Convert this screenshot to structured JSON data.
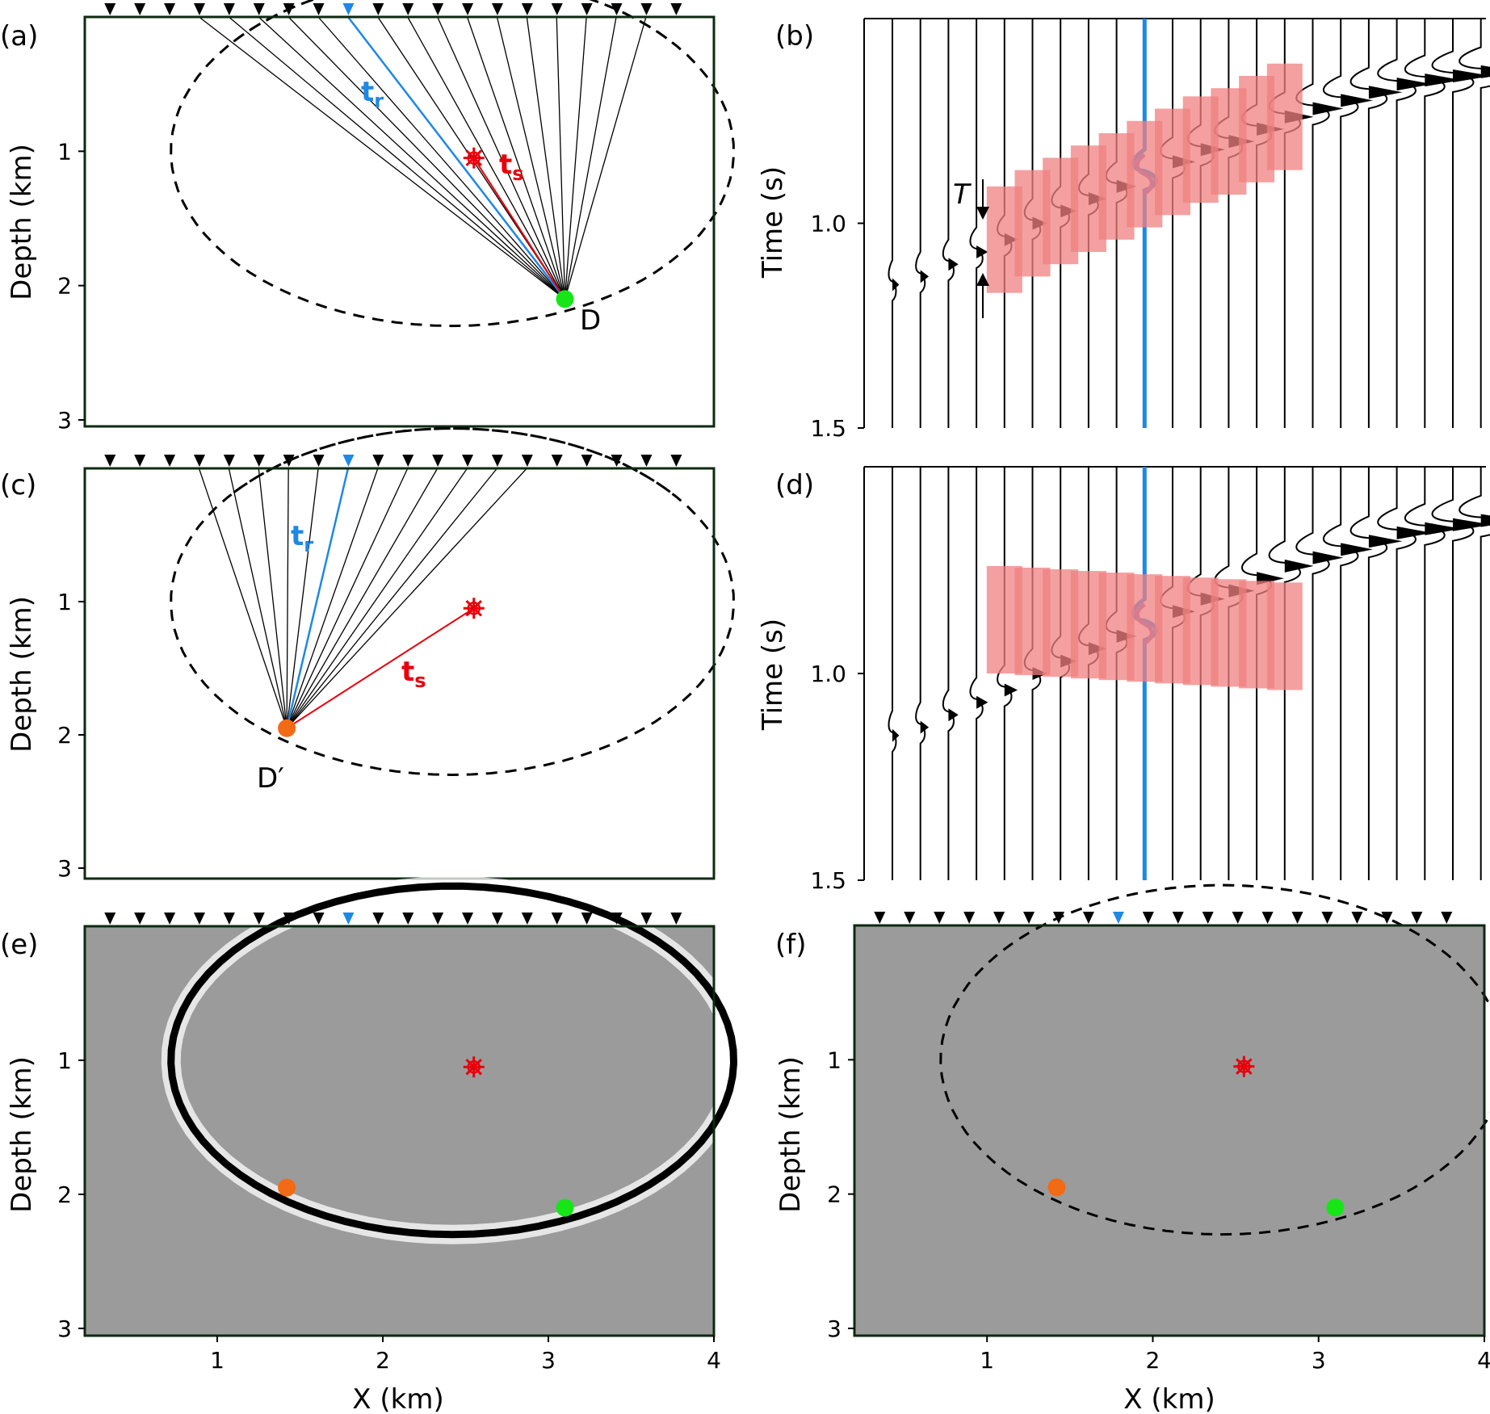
{
  "figure": {
    "panels": [
      {
        "id": "a",
        "label": "(a)",
        "ylabel": "Depth (km)",
        "ray_labels": {
          "receiver": "t",
          "receiver_sub": "r",
          "source": "t",
          "source_sub": "s"
        },
        "point_label": "D"
      },
      {
        "id": "b",
        "label": "(b)",
        "ylabel": "Time (s)",
        "window_label": "T"
      },
      {
        "id": "c",
        "label": "(c)",
        "ylabel": "Depth (km)",
        "ray_labels": {
          "receiver": "t",
          "receiver_sub": "r",
          "source": "t",
          "source_sub": "s"
        },
        "point_label": "D′"
      },
      {
        "id": "d",
        "label": "(d)",
        "ylabel": "Time (s)"
      },
      {
        "id": "e",
        "label": "(e)",
        "ylabel": "Depth (km)",
        "xlabel": "X (km)"
      },
      {
        "id": "f",
        "label": "(f)",
        "ylabel": "Depth (km)",
        "xlabel": "X (km)"
      }
    ],
    "depth_ticks": [
      "1",
      "2",
      "3"
    ],
    "time_ticks": [
      "1.0",
      "1.5"
    ],
    "x_ticks": [
      "1",
      "2",
      "3",
      "4"
    ],
    "colors": {
      "receiver_highlight": "#1e88e5",
      "source": "#e8000b",
      "point_D": "#16e616",
      "point_D_prime": "#f26a13",
      "window": "#f08080",
      "wavelet": "#8a6fb8",
      "image_background": "#9b9b9b"
    },
    "icons": {
      "source": "source-star-icon",
      "receiver": "receiver-triangle-icon"
    }
  },
  "chart_data": [
    {
      "type": "scatter",
      "panel": "a",
      "title": "",
      "xlabel": "",
      "ylabel": "Depth (km)",
      "ylim": [
        0,
        3
      ],
      "xlim": [
        0.2,
        4.0
      ],
      "receivers_x": [
        0.35,
        0.53,
        0.71,
        0.89,
        1.07,
        1.25,
        1.43,
        1.61,
        1.79,
        1.97,
        2.15,
        2.33,
        2.51,
        2.69,
        2.87,
        3.05,
        3.23,
        3.41,
        3.59,
        3.77
      ],
      "highlighted_receiver_x": 1.79,
      "source": {
        "x": 2.55,
        "z": 1.05
      },
      "point": {
        "name": "D",
        "x": 3.1,
        "z": 2.1
      },
      "ellipse": {
        "cx": 2.42,
        "cz": 1.0,
        "rx": 1.7,
        "rz": 1.3
      }
    },
    {
      "type": "line",
      "panel": "b",
      "ylabel": "Time (s)",
      "ylim": [
        0.5,
        1.5
      ],
      "ntraces": 22,
      "highlighted_trace": 9,
      "arrival_times": [
        1.15,
        1.13,
        1.1,
        1.07,
        1.04,
        1.0,
        0.97,
        0.94,
        0.91,
        0.88,
        0.85,
        0.82,
        0.8,
        0.77,
        0.74,
        0.72,
        0.7,
        0.68,
        0.66,
        0.65,
        0.64,
        0.63
      ],
      "window_traces": [
        4,
        14
      ],
      "window_length_s": 0.26
    },
    {
      "type": "scatter",
      "panel": "c",
      "ylabel": "Depth (km)",
      "ylim": [
        0,
        3
      ],
      "xlim": [
        0.2,
        4.0
      ],
      "highlighted_receiver_x": 1.79,
      "source": {
        "x": 2.55,
        "z": 1.05
      },
      "point": {
        "name": "D′",
        "x": 1.42,
        "z": 1.95
      }
    },
    {
      "type": "line",
      "panel": "d",
      "ylabel": "Time (s)",
      "ylim": [
        0.5,
        1.5
      ],
      "ntraces": 22,
      "highlighted_trace": 9,
      "arrival_times": [
        1.15,
        1.13,
        1.1,
        1.07,
        1.04,
        1.0,
        0.97,
        0.94,
        0.91,
        0.88,
        0.85,
        0.82,
        0.8,
        0.77,
        0.74,
        0.72,
        0.7,
        0.68,
        0.66,
        0.65,
        0.64,
        0.63
      ],
      "window_traces": [
        4,
        14
      ],
      "window_center_s": 0.87
    },
    {
      "type": "heatmap",
      "panel": "e",
      "xlabel": "X (km)",
      "ylabel": "Depth (km)",
      "xlim": [
        0.2,
        4.0
      ],
      "ylim": [
        0,
        3
      ],
      "points": [
        {
          "x": 1.42,
          "z": 1.95
        },
        {
          "x": 3.1,
          "z": 2.1
        }
      ],
      "source": {
        "x": 2.55,
        "z": 1.05
      }
    },
    {
      "type": "heatmap",
      "panel": "f",
      "xlabel": "X (km)",
      "ylabel": "Depth (km)",
      "xlim": [
        0.2,
        4.0
      ],
      "ylim": [
        0,
        3
      ],
      "points": [
        {
          "x": 1.42,
          "z": 1.95
        },
        {
          "x": 3.1,
          "z": 2.1
        }
      ],
      "source": {
        "x": 2.55,
        "z": 1.05
      }
    }
  ]
}
